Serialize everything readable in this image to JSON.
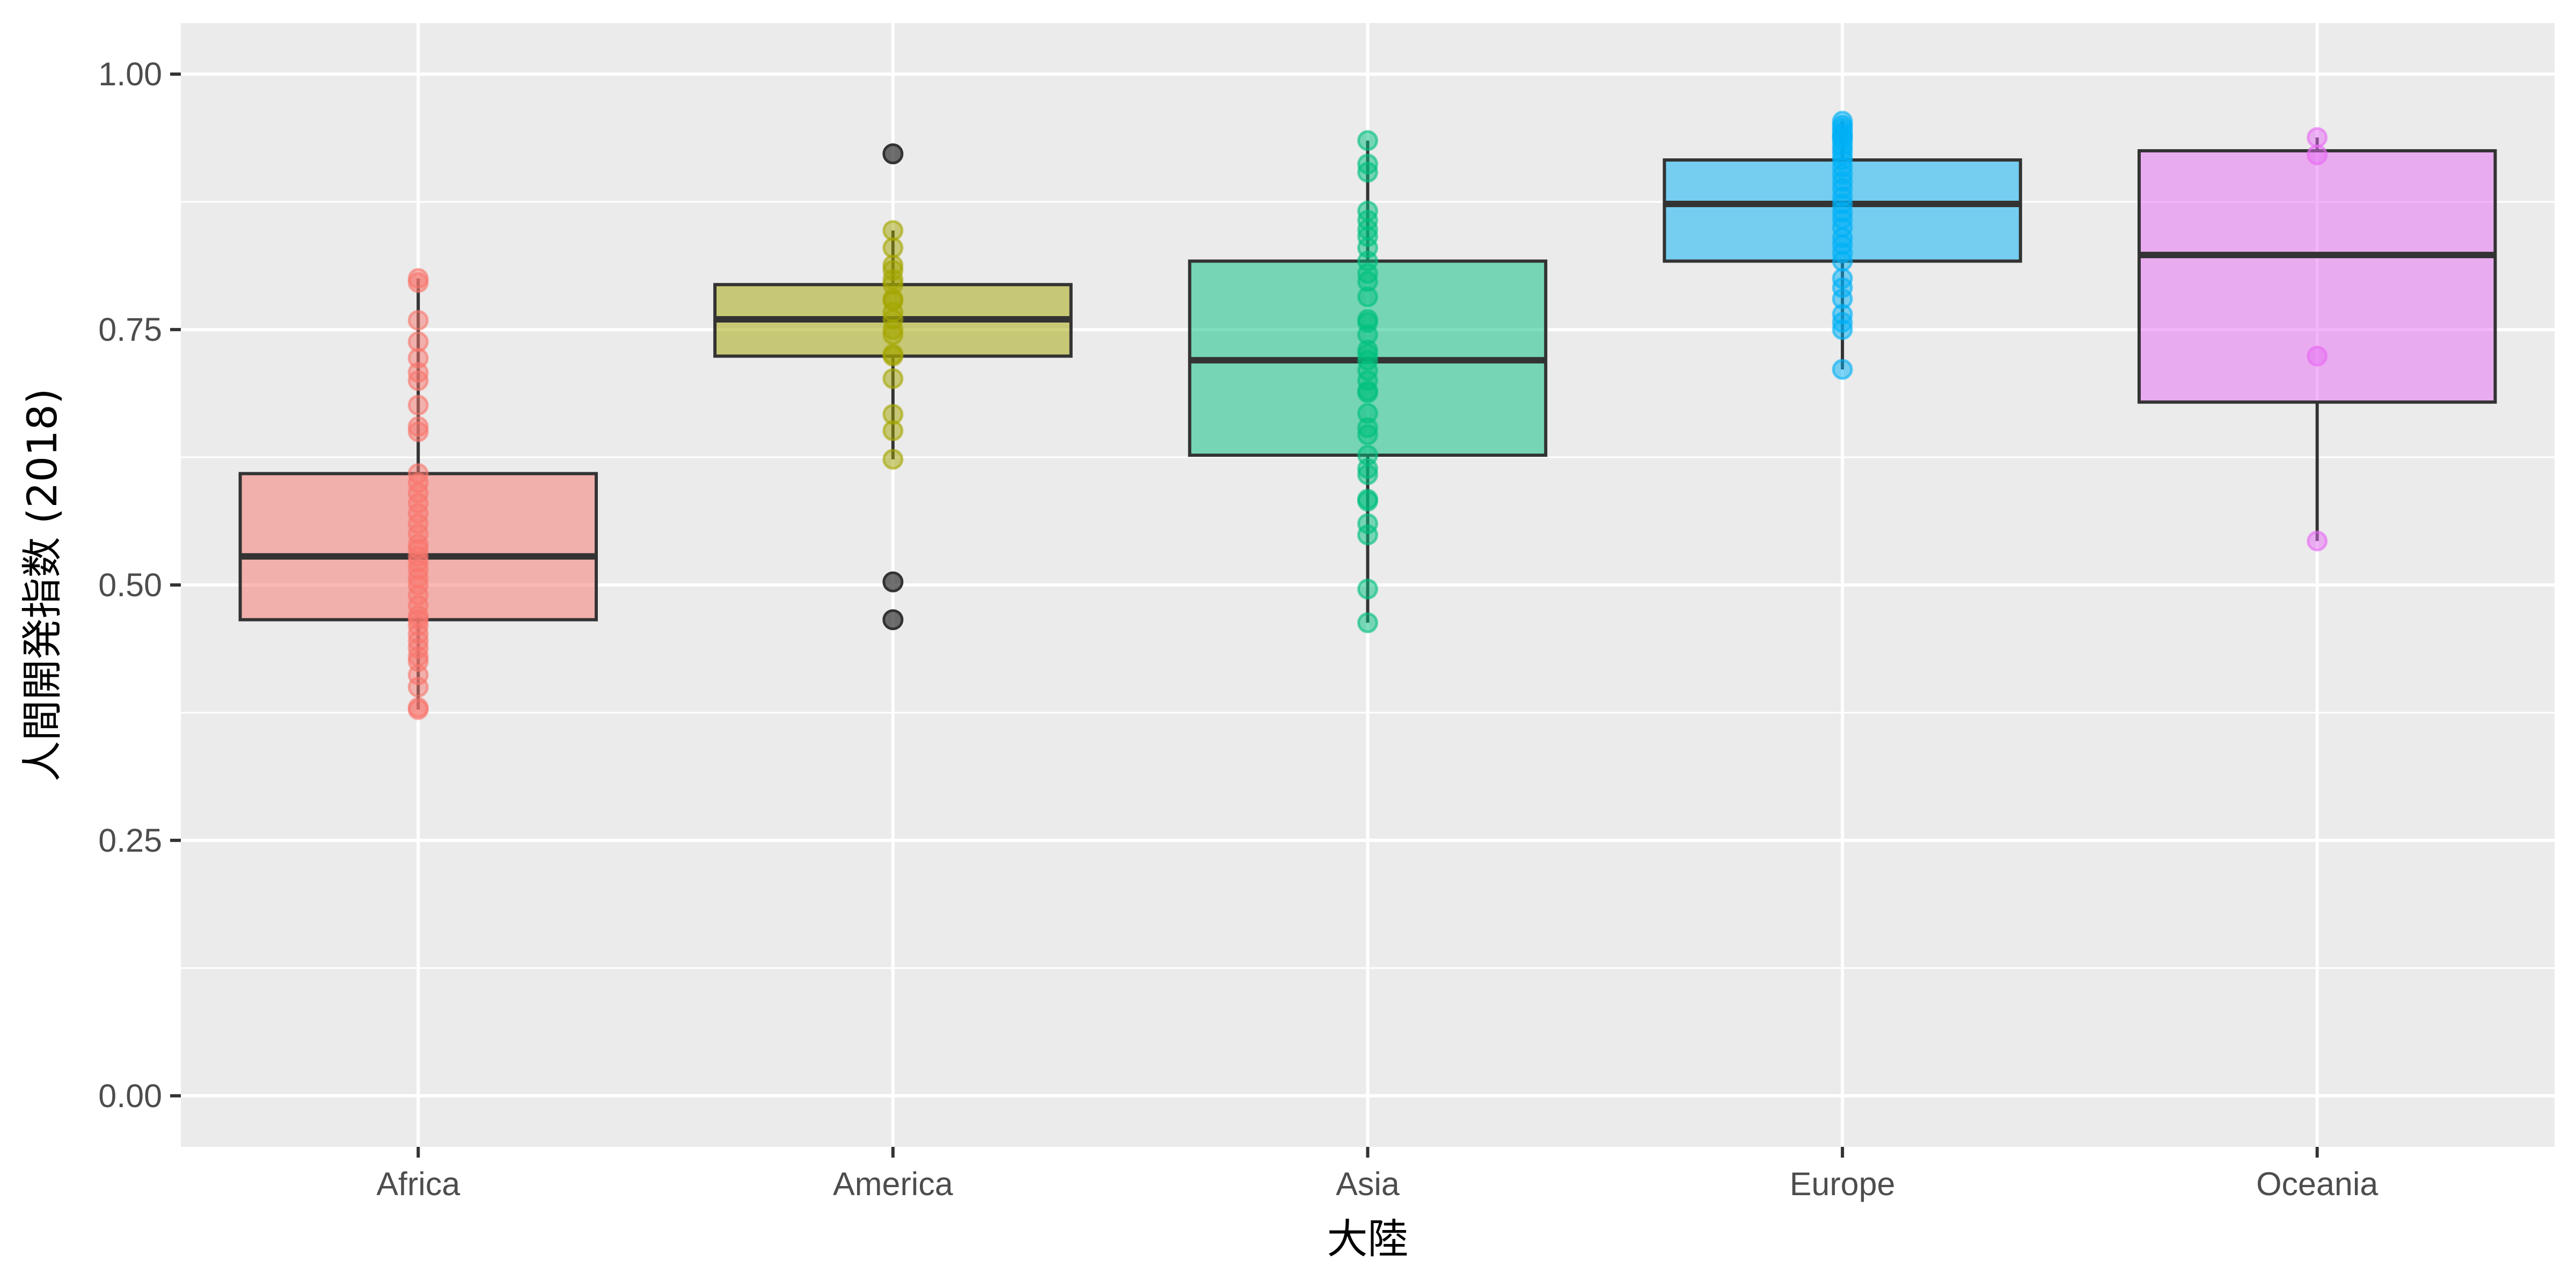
{
  "chart_data": {
    "type": "box",
    "title": "",
    "xlabel": "大陸",
    "ylabel": "人間開発指数 (2018)",
    "ylim": [
      -0.05,
      1.05
    ],
    "y_ticks": [
      0.0,
      0.25,
      0.5,
      0.75,
      1.0
    ],
    "y_tick_labels": [
      "0.00",
      "0.25",
      "0.50",
      "0.75",
      "1.00"
    ],
    "categories": [
      "Africa",
      "America",
      "Asia",
      "Europe",
      "Oceania"
    ],
    "grid": true,
    "legend": "none",
    "outlier_color": "#333333",
    "series": [
      {
        "category": "Africa",
        "color": "#F8766D",
        "box": {
          "lower_whisker": 0.378,
          "q1": 0.466,
          "median": 0.528,
          "q3": 0.609,
          "upper_whisker": 0.8
        },
        "outliers": [],
        "points": [
          0.378,
          0.38,
          0.4,
          0.412,
          0.425,
          0.43,
          0.438,
          0.445,
          0.452,
          0.46,
          0.466,
          0.47,
          0.48,
          0.49,
          0.5,
          0.507,
          0.515,
          0.522,
          0.528,
          0.535,
          0.54,
          0.55,
          0.56,
          0.57,
          0.58,
          0.59,
          0.6,
          0.609,
          0.65,
          0.655,
          0.676,
          0.7,
          0.708,
          0.722,
          0.738,
          0.759,
          0.796,
          0.8
        ]
      },
      {
        "category": "America",
        "color": "#A3A500",
        "box": {
          "lower_whisker": 0.623,
          "q1": 0.724,
          "median": 0.76,
          "q3": 0.794,
          "upper_whisker": 0.847
        },
        "outliers": [
          0.466,
          0.503,
          0.922
        ],
        "points": [
          0.623,
          0.651,
          0.667,
          0.702,
          0.724,
          0.726,
          0.745,
          0.75,
          0.76,
          0.767,
          0.778,
          0.78,
          0.794,
          0.799,
          0.808,
          0.813,
          0.83,
          0.847
        ]
      },
      {
        "category": "Asia",
        "color": "#00BF7D",
        "box": {
          "lower_whisker": 0.463,
          "q1": 0.627,
          "median": 0.72,
          "q3": 0.817,
          "upper_whisker": 0.935
        },
        "outliers": [],
        "points": [
          0.463,
          0.496,
          0.549,
          0.56,
          0.582,
          0.584,
          0.608,
          0.614,
          0.627,
          0.647,
          0.654,
          0.668,
          0.688,
          0.69,
          0.7,
          0.71,
          0.72,
          0.726,
          0.73,
          0.745,
          0.757,
          0.76,
          0.782,
          0.797,
          0.805,
          0.817,
          0.83,
          0.841,
          0.848,
          0.857,
          0.866,
          0.904,
          0.912,
          0.935
        ]
      },
      {
        "category": "Europe",
        "color": "#00B0F6",
        "box": {
          "lower_whisker": 0.711,
          "q1": 0.817,
          "median": 0.873,
          "q3": 0.916,
          "upper_whisker": 0.954
        },
        "outliers": [],
        "points": [
          0.711,
          0.75,
          0.757,
          0.765,
          0.78,
          0.791,
          0.8,
          0.817,
          0.825,
          0.833,
          0.84,
          0.85,
          0.858,
          0.865,
          0.873,
          0.88,
          0.888,
          0.895,
          0.902,
          0.909,
          0.916,
          0.921,
          0.926,
          0.93,
          0.935,
          0.938,
          0.94,
          0.943,
          0.947,
          0.95,
          0.954
        ]
      },
      {
        "category": "Oceania",
        "color": "#E76BF3",
        "box": {
          "lower_whisker": 0.543,
          "q1": 0.679,
          "median": 0.823,
          "q3": 0.925,
          "upper_whisker": 0.938
        },
        "outliers": [],
        "points": [
          0.543,
          0.724,
          0.921,
          0.938
        ]
      }
    ]
  }
}
